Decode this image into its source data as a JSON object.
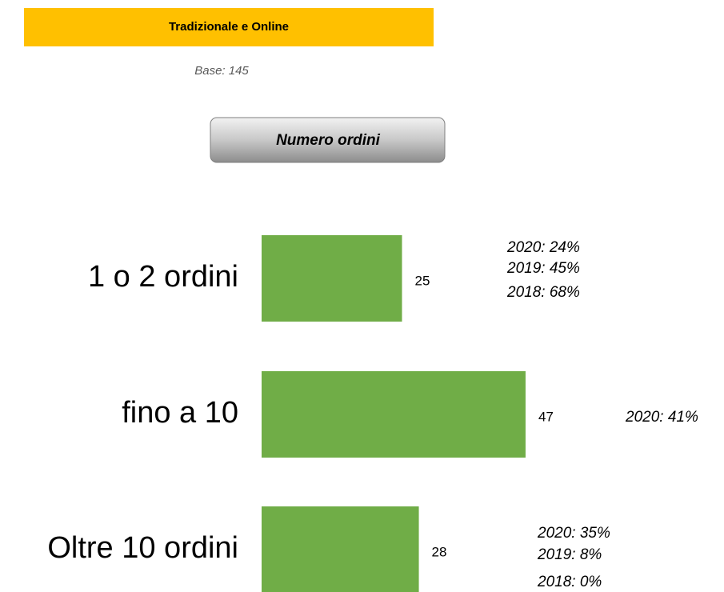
{
  "header": {
    "title": "Tradizionale e Online",
    "base": "Base: 145"
  },
  "chart_data": {
    "type": "bar",
    "orientation": "horizontal",
    "title": "Numero ordini",
    "categories": [
      "1 o 2 ordini",
      "fino a 10",
      "Oltre 10 ordini"
    ],
    "values": [
      25,
      47,
      28
    ],
    "color": "#70ad47",
    "annotations": [
      [
        "2020: 24%",
        "2019: 45%",
        "2018: 68%"
      ],
      [
        "2020: 41%"
      ],
      [
        "2020: 35%",
        "2019: 8%",
        "2018: 0%"
      ]
    ]
  }
}
